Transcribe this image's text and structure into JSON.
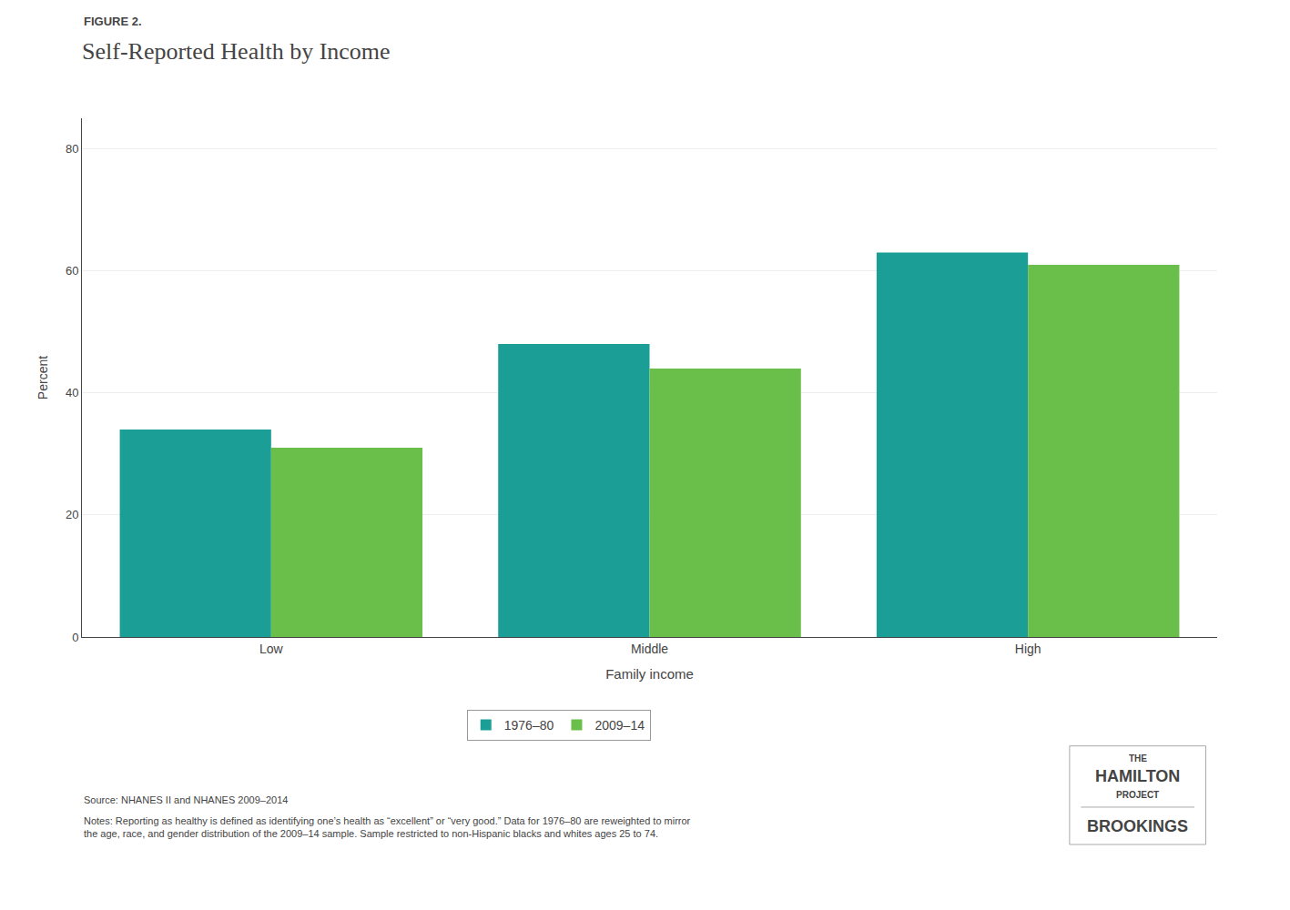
{
  "chart_data": {
    "type": "bar",
    "title": "Self-Reported Health by Income",
    "categories": [
      "Low",
      "Middle",
      "High"
    ],
    "series": [
      {
        "name": "1976–80",
        "color": "#1a9e96",
        "values": [
          34,
          48,
          63
        ]
      },
      {
        "name": "2009–14",
        "color": "#6abf4b",
        "values": [
          31,
          44,
          61
        ]
      }
    ],
    "x_label": "Family income",
    "y_label": "Percent",
    "ylim": [
      0,
      85
    ],
    "yticks": [
      0,
      20,
      40,
      60,
      80
    ],
    "grid": true,
    "legend": "bottom",
    "annotations": [
      "FIGURE 2.",
      "Source: NHANES II and NHANES 2009–2014",
      "Notes: Reporting as healthy is defined as identifying one’s health as “excellent” or “very good.” Data for 1976–80 are reweighted to mirror\nthe age, race, and gender distribution of the 2009–14 sample. Sample restricted to non-Hispanic blacks and whites ages 25 to 74.",
      "THE",
      "HAMILTON",
      "PROJECT",
      "BROOKINGS"
    ]
  }
}
